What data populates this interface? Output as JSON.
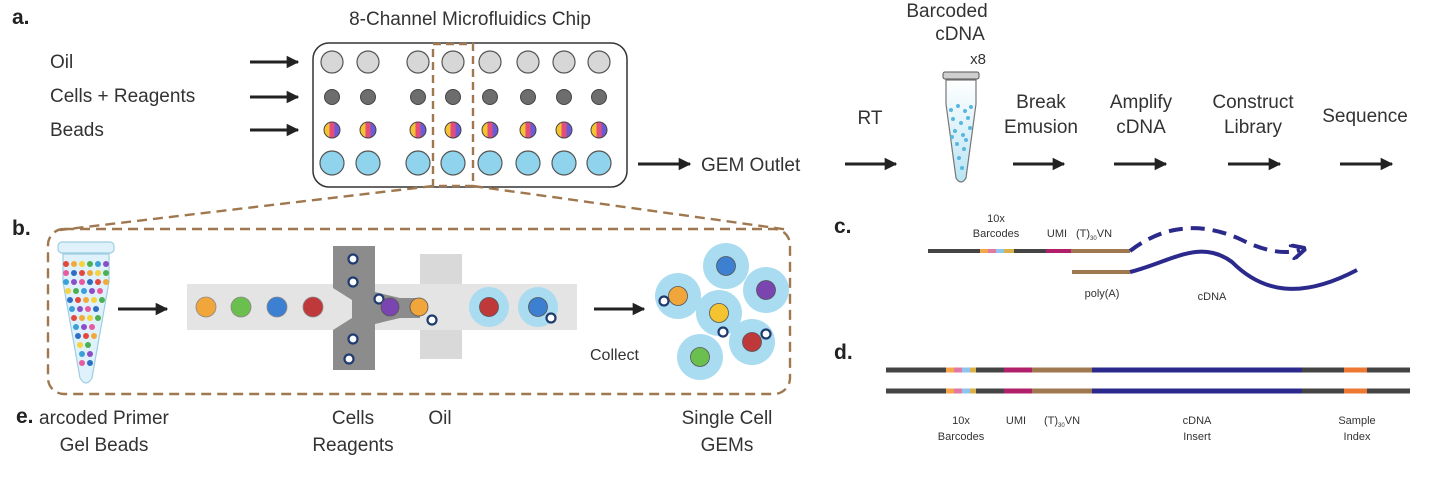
{
  "panels": {
    "a": "a.",
    "b": "b.",
    "c": "c.",
    "d": "d.",
    "e": "e."
  },
  "panel_a": {
    "chip_title": "8-Channel Microfluidics Chip",
    "inputs": [
      "Oil",
      "Cells + Reagents",
      "Beads"
    ],
    "gem_outlet": "GEM Outlet",
    "tube_label_line1": "Barcoded",
    "tube_label_line2": "cDNA",
    "tube_multiplier": "x8",
    "steps": {
      "rt": "RT",
      "break_line1": "Break",
      "break_line2": "Emusion",
      "amplify_line1": "Amplify",
      "amplify_line2": "cDNA",
      "construct_line1": "Construct",
      "construct_line2": "Library",
      "sequence": "Sequence"
    }
  },
  "panel_b": {
    "beads_line1": "arcoded Primer",
    "beads_line2": "Gel Beads",
    "cells_line1": "Cells",
    "cells_line2": "Reagents",
    "oil": "Oil",
    "collect": "Collect",
    "gems_line1": "Single Cell",
    "gems_line2": "GEMs"
  },
  "panel_c": {
    "barcodes_line1": "10x",
    "barcodes_line2": "Barcodes",
    "umi": "UMI",
    "tvn_prefix": "(T)",
    "tvn_sub": "30",
    "tvn_suffix": "VN",
    "polya": "poly(A)",
    "cdna": "cDNA"
  },
  "panel_d": {
    "barcodes_line1": "10x",
    "barcodes_line2": "Barcodes",
    "umi": "UMI",
    "tvn_prefix": "(T)",
    "tvn_sub": "30",
    "tvn_suffix": "VN",
    "insert_line1": "cDNA",
    "insert_line2": "Insert",
    "index_line1": "Sample",
    "index_line2": "Index"
  },
  "colors": {
    "ink": "#222222",
    "oil_well": "#d7d7d7",
    "cell_well": "#6d6d6d",
    "gem_well": "#8fd3ec",
    "tan": "#a07850",
    "gem_blue": "#a9dcf0",
    "cdna_navy": "#2b2a8c",
    "umi": "#b0206a",
    "index": "#ee7733"
  }
}
